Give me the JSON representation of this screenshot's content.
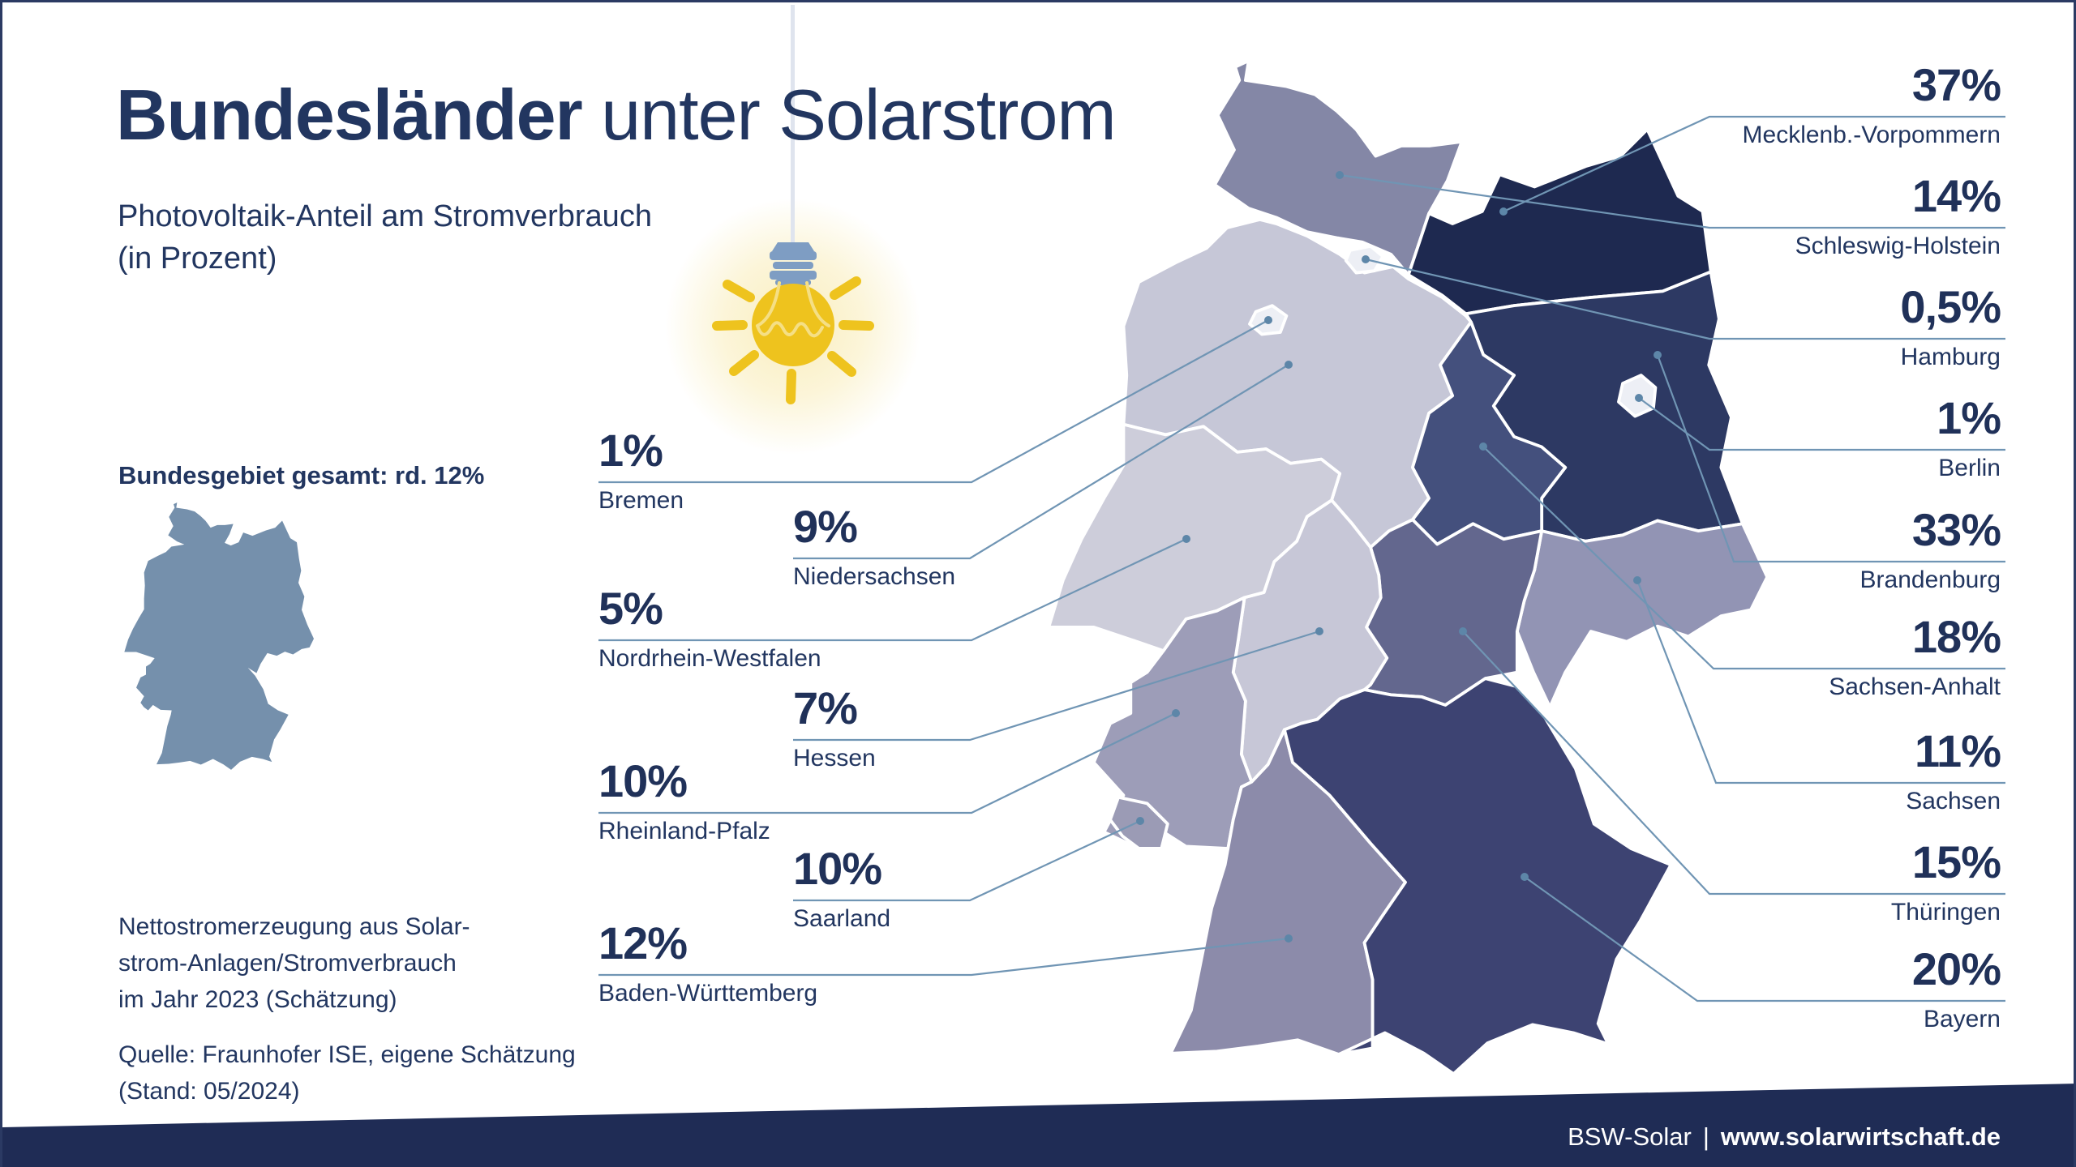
{
  "title": {
    "bold": "Bundesländer",
    "rest": " unter Solarstrom"
  },
  "subtitle": {
    "line1": "Photovoltaik-Anteil am Stromverbrauch",
    "line2": "(in Prozent)"
  },
  "national_total_label": "Bundesgebiet gesamt: rd. 12%",
  "notes": {
    "lines": [
      "Nettostromerzeugung aus Solar-",
      "strom-Anlagen/Stromverbrauch",
      "im Jahr 2023 (Schätzung)"
    ]
  },
  "source": {
    "lines": [
      "Quelle: Fraunhofer ISE, eigene Schätzung",
      "(Stand: 05/2024)"
    ]
  },
  "footer": {
    "org": "BSW-Solar",
    "separator": "|",
    "url": "www.solarwirtschaft.de"
  },
  "colors": {
    "text_navy": "#223660",
    "pct_navy": "#203159",
    "footer_bg": "#1f2c55",
    "border": "#2b3a63",
    "leader_line": "#7095b4",
    "leader_dot": "#5d86a8",
    "map_border": "#ffffff",
    "mini_map": "#7590ac",
    "bulb_yellow": "#eec31e",
    "bulb_glow": "#f9edba",
    "socket_blue": "#7e9dc3",
    "cord": "#dfe4ee",
    "filament": "#f5df85"
  },
  "chart_data": {
    "type": "choropleth_map",
    "title": "Bundesländer unter Solarstrom",
    "subtitle": "Photovoltaik-Anteil am Stromverbrauch (in Prozent)",
    "year": "2023",
    "national_total": {
      "label": "Bundesgebiet gesamt: rd. 12%",
      "value": 12
    },
    "legend_position": "callout-labels-around-map",
    "states": [
      {
        "id": "mecklenburg-vorpommern",
        "name": "Mecklenb.-Vorpommern",
        "label": "37%",
        "value": 37
      },
      {
        "id": "schleswig-holstein",
        "name": "Schleswig-Holstein",
        "label": "14%",
        "value": 14
      },
      {
        "id": "hamburg",
        "name": "Hamburg",
        "label": "0,5%",
        "value": 0.5
      },
      {
        "id": "berlin",
        "name": "Berlin",
        "label": "1%",
        "value": 1
      },
      {
        "id": "brandenburg",
        "name": "Brandenburg",
        "label": "33%",
        "value": 33
      },
      {
        "id": "sachsen-anhalt",
        "name": "Sachsen-Anhalt",
        "label": "18%",
        "value": 18
      },
      {
        "id": "sachsen",
        "name": "Sachsen",
        "label": "11%",
        "value": 11
      },
      {
        "id": "thueringen",
        "name": "Thüringen",
        "label": "15%",
        "value": 15
      },
      {
        "id": "bayern",
        "name": "Bayern",
        "label": "20%",
        "value": 20
      },
      {
        "id": "bremen",
        "name": "Bremen",
        "label": "1%",
        "value": 1
      },
      {
        "id": "niedersachsen",
        "name": "Niedersachsen",
        "label": "9%",
        "value": 9
      },
      {
        "id": "nordrhein-westfalen",
        "name": "Nordrhein-Westfalen",
        "label": "5%",
        "value": 5
      },
      {
        "id": "hessen",
        "name": "Hessen",
        "label": "7%",
        "value": 7
      },
      {
        "id": "rheinland-pfalz",
        "name": "Rheinland-Pfalz",
        "label": "10%",
        "value": 10
      },
      {
        "id": "saarland",
        "name": "Saarland",
        "label": "10%",
        "value": 10
      },
      {
        "id": "baden-wuerttemberg",
        "name": "Baden-Württemberg",
        "label": "12%",
        "value": 12
      }
    ],
    "colors": {
      "schleswig-holstein": "#8487a6",
      "mecklenburg-vorpommern": "#1e2950",
      "niedersachsen": "#c6c7d7",
      "bremen": "#edeff5",
      "hamburg": "#edeff5",
      "brandenburg": "#2d3963",
      "berlin": "#edeff5",
      "sachsen-anhalt": "#44507d",
      "sachsen": "#9294b4",
      "thueringen": "#63678e",
      "nordrhein-westfalen": "#cdcdda",
      "hessen": "#c7c7d7",
      "rheinland-pfalz": "#9d9db8",
      "saarland": "#9b9bb5",
      "baden-wuerttemberg": "#8c8baa",
      "bayern": "#3d4372"
    }
  }
}
